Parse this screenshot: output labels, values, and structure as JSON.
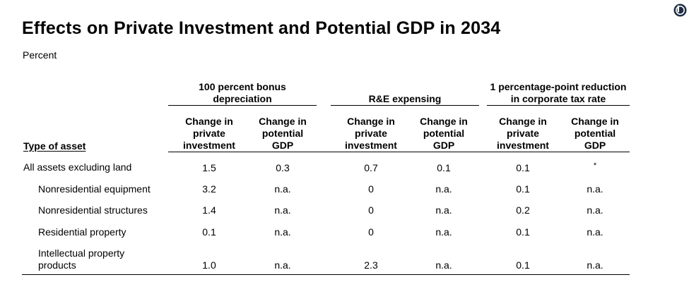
{
  "title": "Effects on Private Investment and Potential GDP in 2034",
  "subtitle": "Percent",
  "logo_icon": "cbo-logo-icon",
  "table": {
    "row_header": "Type of asset",
    "groups": [
      {
        "label_line1": "100 percent bonus",
        "label_line2": "depreciation"
      },
      {
        "label_line1": "R&E expensing",
        "label_line2": ""
      },
      {
        "label_line1": "1 percentage-point reduction",
        "label_line2": "in corporate tax rate"
      }
    ],
    "subheaders": [
      {
        "line1": "Change in",
        "line2": "private",
        "line3": "investment"
      },
      {
        "line1": "Change in",
        "line2": "potential",
        "line3": "GDP"
      },
      {
        "line1": "Change in",
        "line2": "private",
        "line3": "investment"
      },
      {
        "line1": "Change in",
        "line2": "potential",
        "line3": "GDP"
      },
      {
        "line1": "Change in",
        "line2": "private",
        "line3": "investment"
      },
      {
        "line1": "Change in",
        "line2": "potential",
        "line3": "GDP"
      }
    ],
    "rows": [
      {
        "label_line1": "All assets excluding land",
        "label_line2": "",
        "values": [
          "1.5",
          "0.3",
          "0.7",
          "0.1",
          "0.1",
          "*"
        ]
      },
      {
        "label_line1": "Nonresidential equipment",
        "label_line2": "",
        "values": [
          "3.2",
          "n.a.",
          "0",
          "n.a.",
          "0.1",
          "n.a."
        ]
      },
      {
        "label_line1": "Nonresidential structures",
        "label_line2": "",
        "values": [
          "1.4",
          "n.a.",
          "0",
          "n.a.",
          "0.2",
          "n.a."
        ]
      },
      {
        "label_line1": "Residential property",
        "label_line2": "",
        "values": [
          "0.1",
          "n.a.",
          "0",
          "n.a.",
          "0.1",
          "n.a."
        ]
      },
      {
        "label_line1": "Intellectual property",
        "label_line2": "products",
        "values": [
          "1.0",
          "n.a.",
          "2.3",
          "n.a.",
          "0.1",
          "n.a."
        ]
      }
    ]
  }
}
